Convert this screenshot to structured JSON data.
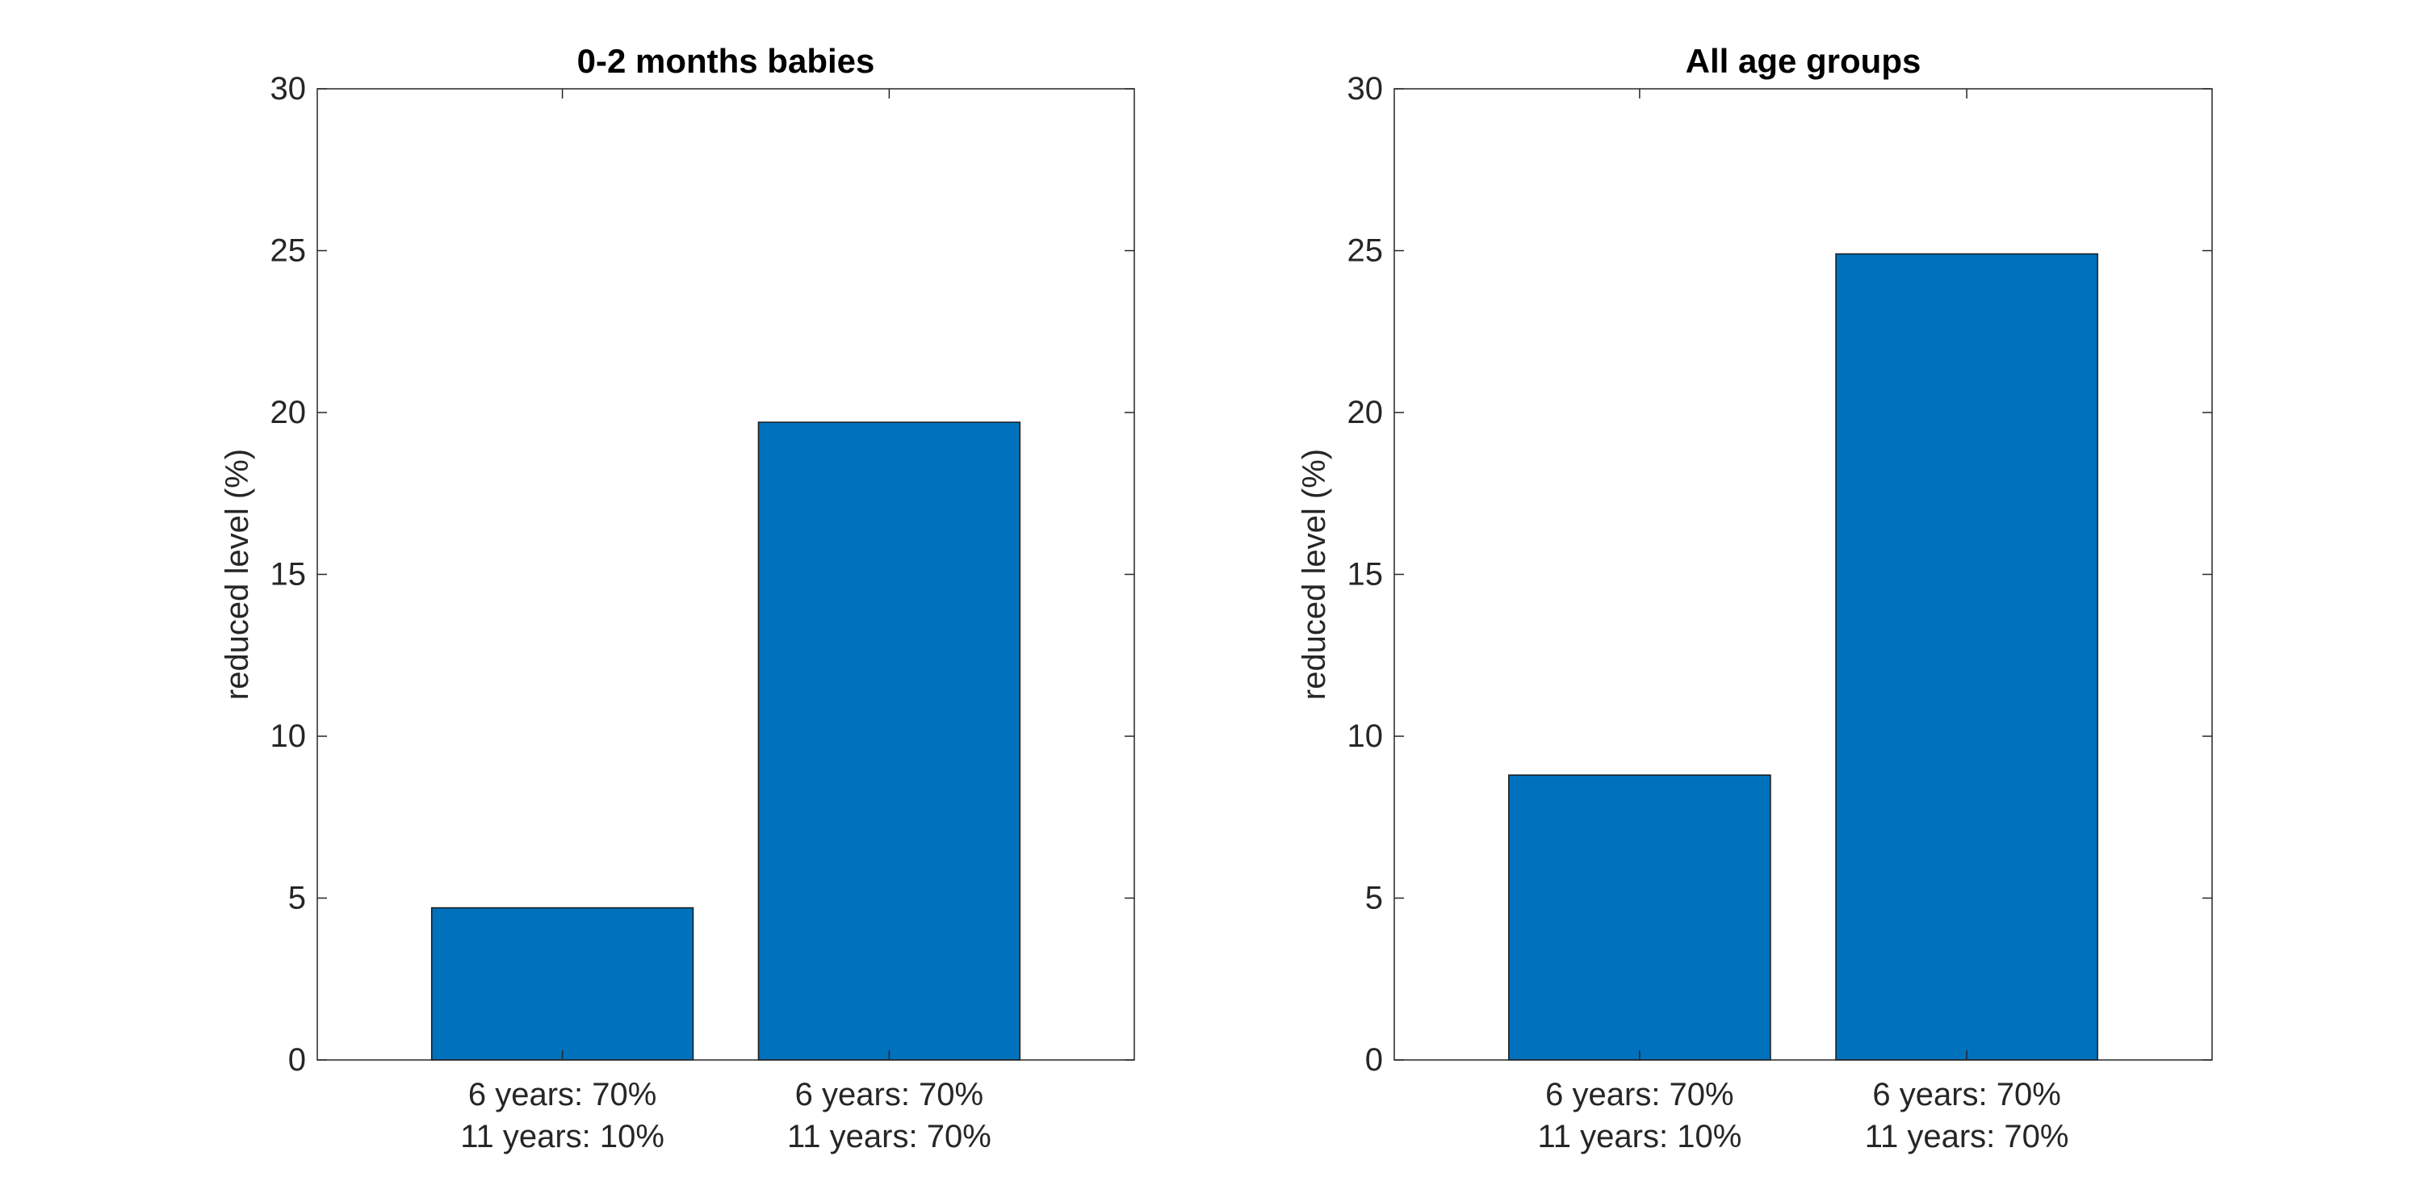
{
  "chart_data": [
    {
      "type": "bar",
      "title": "0-2 months babies",
      "xlabel": "",
      "ylabel": "reduced level (%)",
      "categories": [
        [
          "6 years:  70%",
          "11 years: 10%"
        ],
        [
          "6 years:  70%",
          "11 years: 70%"
        ]
      ],
      "values": [
        4.7,
        19.7
      ],
      "ylim": [
        0,
        30
      ],
      "yticks": [
        0,
        5,
        10,
        15,
        20,
        25,
        30
      ],
      "grid": false,
      "bar_color": "#0072BD"
    },
    {
      "type": "bar",
      "title": "All age groups",
      "xlabel": "",
      "ylabel": "reduced level (%)",
      "categories": [
        [
          "6 years:  70%",
          "11 years: 10%"
        ],
        [
          "6 years:  70%",
          "11 years: 70%"
        ]
      ],
      "values": [
        8.8,
        24.9
      ],
      "ylim": [
        0,
        30
      ],
      "yticks": [
        0,
        5,
        10,
        15,
        20,
        25,
        30
      ],
      "grid": false,
      "bar_color": "#0072BD"
    }
  ]
}
